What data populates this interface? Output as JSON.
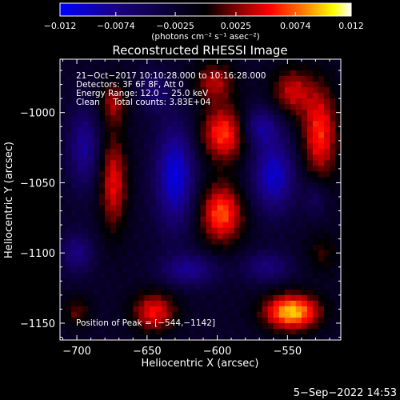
{
  "chart_data": {
    "type": "heatmap",
    "title": "Reconstructed RHESSI Image",
    "xlabel": "Heliocentric X (arcsec)",
    "ylabel": "Heliocentric Y (arcsec)",
    "xlim": [
      -712,
      -512
    ],
    "ylim": [
      -1162,
      -962
    ],
    "x_ticks": [
      -700,
      -650,
      -600,
      -550
    ],
    "y_ticks": [
      -1000,
      -1050,
      -1100,
      -1150
    ],
    "x_tick_labels": [
      "−700",
      "−650",
      "−600",
      "−550"
    ],
    "y_tick_labels": [
      "−1000",
      "−1050",
      "−1100",
      "−1150"
    ],
    "colorbar": {
      "range": [
        -0.012,
        0.012
      ],
      "tick_values": [
        -0.012,
        -0.0074,
        -0.0025,
        0.0025,
        0.0074,
        0.012
      ],
      "tick_labels": [
        "−0.012",
        "−0.0074",
        "−0.0025",
        "0.0025",
        "0.0074",
        "0.012"
      ],
      "units": "(photons cm⁻² s⁻¹ asec⁻²)",
      "colors": [
        "#0000ff",
        "#1a0080",
        "#000000",
        "#7a0000",
        "#ff0000",
        "#ff8000",
        "#ffff00",
        "#ffffff"
      ]
    },
    "annotations": [
      "21−Oct−2017 10:10:28.000 to 10:16:28.000",
      "Detectors: 3F 6F 8F, Att 0",
      "Energy Range: 12.0 − 25.0 keV",
      "Clean     Total counts: 3.83E+04"
    ],
    "peak_label": "Position of Peak = [−544,−1142]",
    "peak": [
      -544,
      -1142
    ],
    "grid": false,
    "sources": [
      {
        "x": -547,
        "y": -1142,
        "sx": 14,
        "sy": 9,
        "amp": 0.012
      },
      {
        "x": -527,
        "y": -1015,
        "sx": 9,
        "sy": 24,
        "amp": 0.0082
      },
      {
        "x": -547,
        "y": -985,
        "sx": 10,
        "sy": 12,
        "amp": 0.0062
      },
      {
        "x": -597,
        "y": -1072,
        "sx": 11,
        "sy": 15,
        "amp": 0.0092
      },
      {
        "x": -595,
        "y": -1015,
        "sx": 12,
        "sy": 14,
        "amp": 0.0088
      },
      {
        "x": -602,
        "y": -978,
        "sx": 10,
        "sy": 10,
        "amp": 0.0058
      },
      {
        "x": -674,
        "y": -1050,
        "sx": 7,
        "sy": 24,
        "amp": 0.0072
      },
      {
        "x": -674,
        "y": -993,
        "sx": 7,
        "sy": 11,
        "amp": 0.0052
      },
      {
        "x": -645,
        "y": -1142,
        "sx": 11,
        "sy": 10,
        "amp": 0.0075
      },
      {
        "x": -700,
        "y": -1142,
        "sx": 7,
        "sy": 8,
        "amp": 0.0038
      },
      {
        "x": -525,
        "y": -1100,
        "sx": 8,
        "sy": 10,
        "amp": 0.003
      },
      {
        "x": -630,
        "y": -1045,
        "sx": 10,
        "sy": 26,
        "amp": -0.0085
      },
      {
        "x": -560,
        "y": -1045,
        "sx": 11,
        "sy": 18,
        "amp": -0.0078
      },
      {
        "x": -570,
        "y": -1010,
        "sx": 10,
        "sy": 10,
        "amp": -0.006
      },
      {
        "x": -695,
        "y": -1025,
        "sx": 8,
        "sy": 20,
        "amp": -0.0058
      },
      {
        "x": -700,
        "y": -1100,
        "sx": 8,
        "sy": 10,
        "amp": -0.005
      },
      {
        "x": -620,
        "y": -1112,
        "sx": 14,
        "sy": 8,
        "amp": -0.0055
      },
      {
        "x": -565,
        "y": -1110,
        "sx": 12,
        "sy": 8,
        "amp": -0.0045
      },
      {
        "x": -645,
        "y": -985,
        "sx": 8,
        "sy": 10,
        "amp": -0.0038
      },
      {
        "x": -530,
        "y": -1060,
        "sx": 6,
        "sy": 10,
        "amp": -0.0035
      }
    ]
  },
  "footer": {
    "date": "5−Sep−2022 14:53"
  }
}
